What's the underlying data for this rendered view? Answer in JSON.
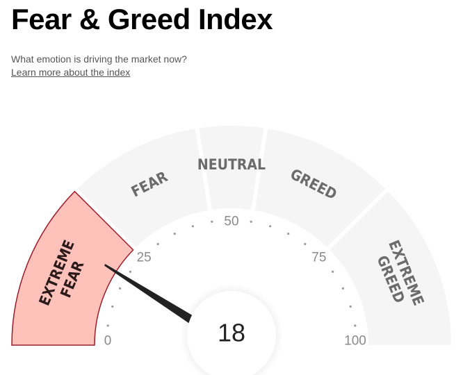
{
  "title": "Fear & Greed Index",
  "subtitle": "What emotion is driving the market now?",
  "learn_more": "Learn more about the index",
  "gauge": {
    "value": 18,
    "min": 0,
    "max": 100,
    "tick_labels": [
      "0",
      "25",
      "50",
      "75",
      "100"
    ],
    "segments": [
      {
        "id": "extreme-fear",
        "lines": [
          "EXTREME",
          "FEAR"
        ],
        "from": 0,
        "to": 25,
        "active": true
      },
      {
        "id": "fear",
        "lines": [
          "FEAR"
        ],
        "from": 25,
        "to": 45,
        "active": false
      },
      {
        "id": "neutral",
        "lines": [
          "NEUTRAL"
        ],
        "from": 45,
        "to": 55,
        "active": false
      },
      {
        "id": "greed",
        "lines": [
          "GREED"
        ],
        "from": 55,
        "to": 75,
        "active": false
      },
      {
        "id": "extreme-greed",
        "lines": [
          "EXTREME",
          "GREED"
        ],
        "from": 75,
        "to": 100,
        "active": false
      }
    ],
    "colors": {
      "inactive_fill": "#f5f5f5",
      "active_fill": "#ffc2bb",
      "active_stroke": "#9c1c2b",
      "needle": "#222222"
    }
  }
}
